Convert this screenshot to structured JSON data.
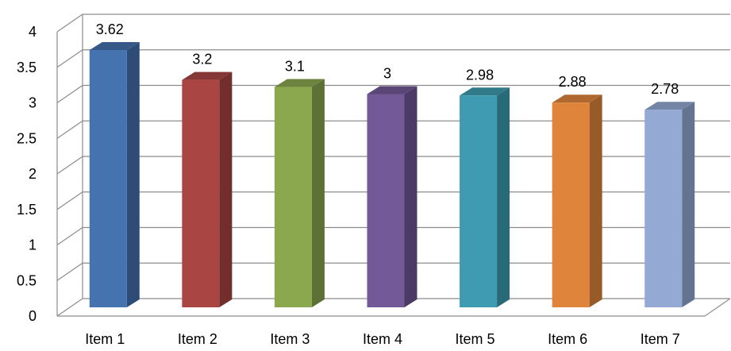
{
  "chart_data": {
    "type": "bar",
    "title": "",
    "xlabel": "",
    "ylabel": "",
    "categories": [
      "Item 1",
      "Item 2",
      "Item 3",
      "Item 4",
      "Item 5",
      "Item 6",
      "Item 7"
    ],
    "values": [
      3.62,
      3.2,
      3.1,
      3,
      2.98,
      2.88,
      2.78
    ],
    "data_labels": [
      "3.62",
      "3.2",
      "3.1",
      "3",
      "2.98",
      "2.88",
      "2.78"
    ],
    "ylim": [
      0,
      4
    ],
    "y_ticks": [
      0,
      0.5,
      1,
      1.5,
      2,
      2.5,
      3,
      3.5,
      4
    ],
    "y_tick_labels": [
      "0",
      "0.5",
      "1",
      "1.5",
      "2",
      "2.5",
      "3",
      "3.5",
      "4"
    ],
    "grid": true,
    "legend": false,
    "style": "3d-column",
    "colors": [
      "#4573b0",
      "#a94543",
      "#8ba84f",
      "#735997",
      "#3e9bb2",
      "#df853b",
      "#94aad4"
    ],
    "side_colors": [
      "#2d4d78",
      "#722e2d",
      "#5d7035",
      "#4b3a65",
      "#296a79",
      "#985a27",
      "#637390"
    ],
    "top_colors": [
      "#36598a",
      "#843735",
      "#6d8340",
      "#5a4677",
      "#317a8a",
      "#ae6830",
      "#7384a5"
    ]
  }
}
